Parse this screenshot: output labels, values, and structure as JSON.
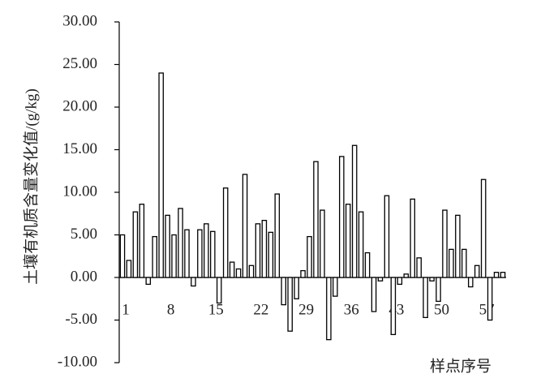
{
  "chart_data": {
    "type": "bar",
    "y_label": "土壤有机质含量变化值/(g/kg)",
    "x_label": "样点序号",
    "categories": [
      "1",
      null,
      null,
      null,
      null,
      null,
      null,
      "8",
      null,
      null,
      null,
      null,
      null,
      null,
      "15",
      null,
      null,
      null,
      null,
      null,
      null,
      "22",
      null,
      null,
      null,
      null,
      null,
      null,
      "29",
      null,
      null,
      null,
      null,
      null,
      null,
      "36",
      null,
      null,
      null,
      null,
      null,
      null,
      "43",
      null,
      null,
      null,
      null,
      null,
      null,
      "50",
      null,
      null,
      null,
      null,
      null,
      null,
      "57",
      null,
      null,
      null
    ],
    "values": [
      5.0,
      2.0,
      7.7,
      8.6,
      -0.8,
      4.8,
      24.0,
      7.3,
      5.0,
      8.1,
      5.6,
      -1.0,
      5.6,
      6.3,
      5.4,
      -3.0,
      10.5,
      1.8,
      1.0,
      12.1,
      1.4,
      6.3,
      6.7,
      5.3,
      9.8,
      -3.2,
      -6.3,
      -2.5,
      0.8,
      4.8,
      13.6,
      7.9,
      -7.3,
      -2.2,
      14.2,
      8.6,
      15.5,
      7.7,
      2.9,
      -4.0,
      -0.4,
      9.6,
      -6.7,
      -0.8,
      0.4,
      9.2,
      2.3,
      -4.7,
      -0.4,
      -2.8,
      7.9,
      3.3,
      7.3,
      3.3,
      -1.1,
      1.4,
      11.5,
      -5.0,
      0.6,
      0.6
    ],
    "color": "#ffffff",
    "stroke": "#000000",
    "ylim": [
      -10,
      30
    ],
    "yticks": [
      {
        "value": -10,
        "label": "-10.00"
      },
      {
        "value": -5,
        "label": "-5.00"
      },
      {
        "value": 0,
        "label": "0.00"
      },
      {
        "value": 5,
        "label": "5.00"
      },
      {
        "value": 10,
        "label": "10.00"
      },
      {
        "value": 15,
        "label": "15.00"
      },
      {
        "value": 20,
        "label": "20.00"
      },
      {
        "value": 25,
        "label": "25.00"
      },
      {
        "value": 30,
        "label": "30.00"
      }
    ],
    "grid": false
  }
}
